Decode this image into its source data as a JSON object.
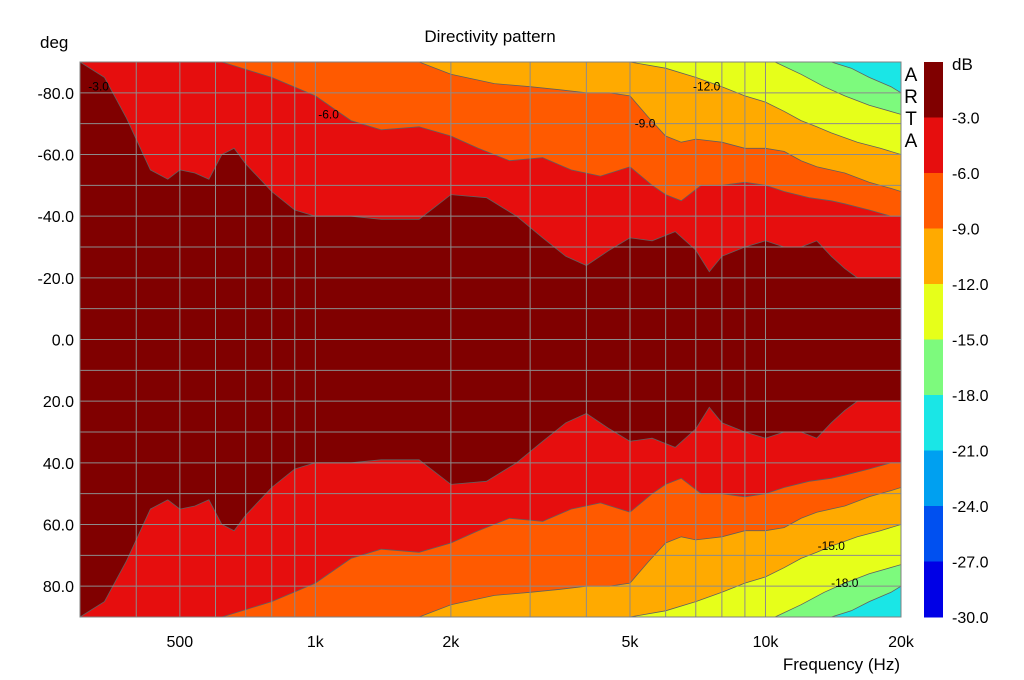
{
  "chart_data": {
    "type": "heatmap",
    "title": "Directivity pattern",
    "xlabel": "Frequency (Hz)",
    "ylabel": "deg",
    "x_scale": "log",
    "xlim": [
      300,
      20000
    ],
    "ylim": [
      -90,
      90
    ],
    "x_ticks": [
      {
        "value": 500,
        "label": "500"
      },
      {
        "value": 1000,
        "label": "1k"
      },
      {
        "value": 2000,
        "label": "2k"
      },
      {
        "value": 5000,
        "label": "5k"
      },
      {
        "value": 10000,
        "label": "10k"
      },
      {
        "value": 20000,
        "label": "20k"
      }
    ],
    "y_ticks": [
      {
        "value": -80,
        "label": "-80.0"
      },
      {
        "value": -60,
        "label": "-60.0"
      },
      {
        "value": -40,
        "label": "-40.0"
      },
      {
        "value": -20,
        "label": "-20.0"
      },
      {
        "value": 0,
        "label": "0.0"
      },
      {
        "value": 20,
        "label": "20.0"
      },
      {
        "value": 40,
        "label": "40.0"
      },
      {
        "value": 60,
        "label": "60.0"
      },
      {
        "value": 80,
        "label": "80.0"
      }
    ],
    "grid": true,
    "colorbar": {
      "label": "dB",
      "ticks": [
        "-3.0",
        "-6.0",
        "-9.0",
        "-12.0",
        "-15.0",
        "-18.0",
        "-21.0",
        "-24.0",
        "-27.0",
        "-30.0"
      ],
      "levels": [
        0,
        -3,
        -6,
        -9,
        -12,
        -15,
        -18,
        -21,
        -24,
        -27,
        -30
      ],
      "colors": [
        "#800000",
        "#e60e0e",
        "#ff5a00",
        "#ffaa00",
        "#e6ff1a",
        "#7dfa7d",
        "#1ae6e6",
        "#00a0f0",
        "#0050f0",
        "#0000e6"
      ]
    },
    "contours": [
      {
        "level": -3,
        "name": "-3.0",
        "points": [
          [
            300,
            -90
          ],
          [
            340,
            -85
          ],
          [
            380,
            -72
          ],
          [
            430,
            -55
          ],
          [
            470,
            -52
          ],
          [
            500,
            -55
          ],
          [
            540,
            -54
          ],
          [
            580,
            -52
          ],
          [
            620,
            -60
          ],
          [
            660,
            -62
          ],
          [
            700,
            -57
          ],
          [
            800,
            -48
          ],
          [
            900,
            -42
          ],
          [
            1000,
            -40
          ],
          [
            1200,
            -40
          ],
          [
            1400,
            -39
          ],
          [
            1700,
            -39
          ],
          [
            2000,
            -47
          ],
          [
            2400,
            -46
          ],
          [
            2800,
            -40
          ],
          [
            3200,
            -33
          ],
          [
            3600,
            -27
          ],
          [
            4000,
            -24
          ],
          [
            4500,
            -29
          ],
          [
            5000,
            -33
          ],
          [
            5600,
            -32
          ],
          [
            6300,
            -35
          ],
          [
            7000,
            -29
          ],
          [
            7500,
            -22
          ],
          [
            8000,
            -27
          ],
          [
            9000,
            -30
          ],
          [
            10000,
            -32
          ],
          [
            11000,
            -30
          ],
          [
            12000,
            -30
          ],
          [
            13000,
            -32
          ],
          [
            14000,
            -27
          ],
          [
            15000,
            -23
          ],
          [
            16000,
            -20
          ],
          [
            17000,
            -20
          ],
          [
            18000,
            -20
          ],
          [
            20000,
            -20
          ]
        ]
      },
      {
        "level": -6,
        "name": "-6.0",
        "points": [
          [
            620,
            -90
          ],
          [
            800,
            -85
          ],
          [
            1000,
            -79
          ],
          [
            1200,
            -71
          ],
          [
            1400,
            -68
          ],
          [
            1700,
            -69
          ],
          [
            2000,
            -66
          ],
          [
            2300,
            -62
          ],
          [
            2700,
            -58
          ],
          [
            3200,
            -59
          ],
          [
            3700,
            -55
          ],
          [
            4300,
            -53
          ],
          [
            5000,
            -56
          ],
          [
            5600,
            -50
          ],
          [
            6000,
            -47
          ],
          [
            6500,
            -45
          ],
          [
            7200,
            -50
          ],
          [
            8000,
            -50
          ],
          [
            9000,
            -51
          ],
          [
            10000,
            -50
          ],
          [
            11000,
            -48
          ],
          [
            12500,
            -46
          ],
          [
            14000,
            -45
          ],
          [
            15000,
            -44
          ],
          [
            17000,
            -42
          ],
          [
            19000,
            -40
          ],
          [
            20000,
            -40
          ]
        ]
      },
      {
        "level": -9,
        "name": "-9.0",
        "points": [
          [
            1700,
            -90
          ],
          [
            2000,
            -86
          ],
          [
            2500,
            -83
          ],
          [
            3000,
            -82
          ],
          [
            3500,
            -81
          ],
          [
            4000,
            -80
          ],
          [
            4500,
            -80
          ],
          [
            5000,
            -79
          ],
          [
            5500,
            -72
          ],
          [
            6000,
            -66
          ],
          [
            6500,
            -64
          ],
          [
            7000,
            -65
          ],
          [
            8000,
            -64
          ],
          [
            9000,
            -62
          ],
          [
            10000,
            -62
          ],
          [
            11000,
            -61
          ],
          [
            12000,
            -58
          ],
          [
            13000,
            -56
          ],
          [
            15000,
            -54
          ],
          [
            17000,
            -51
          ],
          [
            19000,
            -49
          ],
          [
            20000,
            -48
          ]
        ]
      },
      {
        "level": -12,
        "name": "-12.0",
        "points": [
          [
            5000,
            -90
          ],
          [
            6000,
            -88
          ],
          [
            7000,
            -85
          ],
          [
            8000,
            -82
          ],
          [
            9000,
            -79
          ],
          [
            10000,
            -77
          ],
          [
            11000,
            -74
          ],
          [
            12000,
            -71
          ],
          [
            13000,
            -69
          ],
          [
            14000,
            -67
          ],
          [
            16000,
            -64
          ],
          [
            18000,
            -62
          ],
          [
            20000,
            -60
          ]
        ]
      },
      {
        "level": -15,
        "name": "-15.0",
        "points": [
          [
            10500,
            -90
          ],
          [
            12000,
            -86
          ],
          [
            13500,
            -82
          ],
          [
            15000,
            -79
          ],
          [
            17000,
            -76
          ],
          [
            20000,
            -73
          ]
        ]
      },
      {
        "level": -18,
        "name": "-18.0",
        "points": [
          [
            14000,
            -90
          ],
          [
            15500,
            -88
          ],
          [
            17000,
            -85
          ],
          [
            19000,
            -82
          ],
          [
            20000,
            -80
          ]
        ]
      }
    ],
    "contour_labels": [
      {
        "text": "-3.0",
        "x": 330,
        "y": -82
      },
      {
        "text": "-6.0",
        "x": 1070,
        "y": -73
      },
      {
        "text": "-9.0",
        "x": 5400,
        "y": -70
      },
      {
        "text": "-12.0",
        "x": 7400,
        "y": -82
      },
      {
        "text": "-15.0",
        "x": 14000,
        "y": 67
      },
      {
        "text": "-18.0",
        "x": 15000,
        "y": 79
      }
    ],
    "watermark": "ARTA"
  }
}
